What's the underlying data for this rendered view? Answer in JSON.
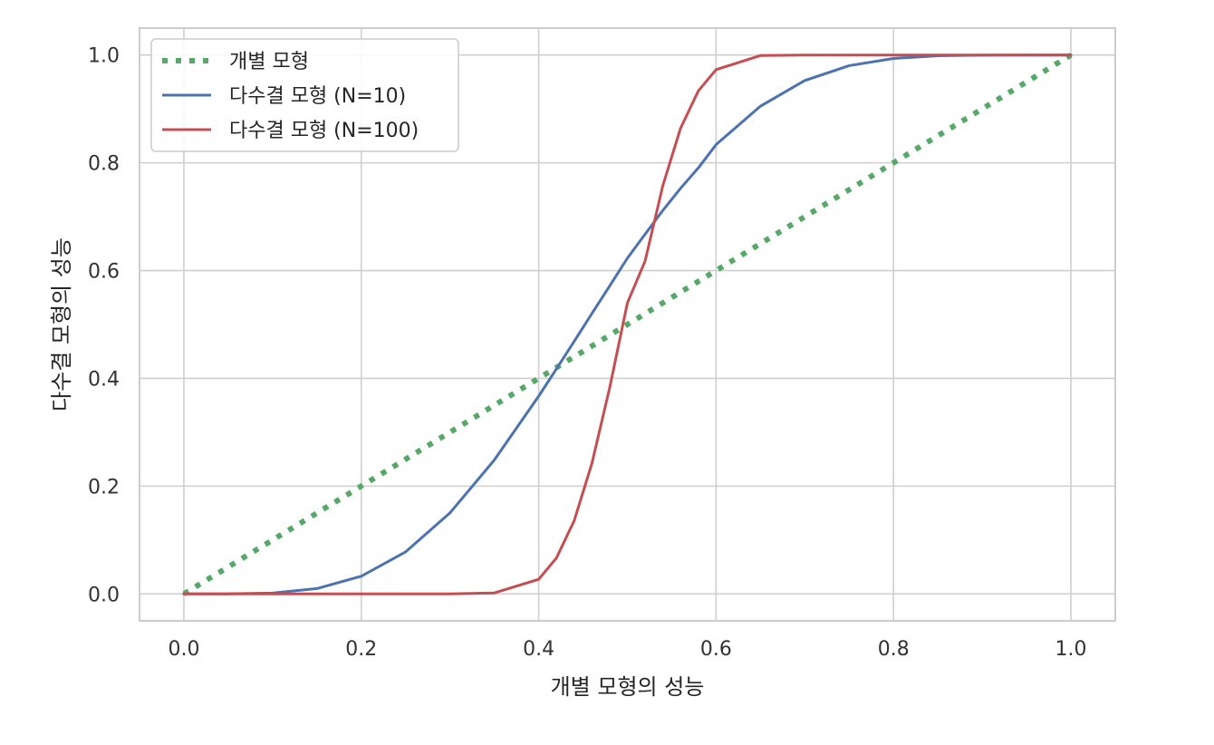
{
  "chart_data": {
    "type": "line",
    "xlabel": "개별 모형의 성능",
    "ylabel": "다수결 모형의 성능",
    "xlim": [
      -0.05,
      1.05
    ],
    "ylim": [
      -0.05,
      1.05
    ],
    "x_ticks": [
      "0.0",
      "0.2",
      "0.4",
      "0.6",
      "0.8",
      "1.0"
    ],
    "y_ticks": [
      "0.0",
      "0.2",
      "0.4",
      "0.6",
      "0.8",
      "1.0"
    ],
    "grid": true,
    "legend_position": "top-left",
    "x": [
      0.0,
      0.05,
      0.1,
      0.15,
      0.2,
      0.25,
      0.3,
      0.35,
      0.4,
      0.42,
      0.44,
      0.46,
      0.48,
      0.5,
      0.52,
      0.54,
      0.56,
      0.58,
      0.6,
      0.65,
      0.7,
      0.75,
      0.8,
      0.85,
      0.9,
      0.95,
      1.0
    ],
    "series": [
      {
        "name": "개별 모형",
        "color": "#55a868",
        "style": "dotted",
        "values": [
          0.0,
          0.05,
          0.1,
          0.15,
          0.2,
          0.25,
          0.3,
          0.35,
          0.4,
          0.42,
          0.44,
          0.46,
          0.48,
          0.5,
          0.52,
          0.54,
          0.56,
          0.58,
          0.6,
          0.65,
          0.7,
          0.75,
          0.8,
          0.85,
          0.9,
          0.95,
          1.0
        ]
      },
      {
        "name": "다수결 모형 (N=10)",
        "color": "#4c72b0",
        "style": "solid",
        "values": [
          0.0,
          0.0001,
          0.0016,
          0.0099,
          0.0328,
          0.078,
          0.1503,
          0.2485,
          0.3669,
          0.4174,
          0.4686,
          0.5202,
          0.5713,
          0.623,
          0.6675,
          0.7117,
          0.7528,
          0.7905,
          0.8338,
          0.9051,
          0.9527,
          0.9803,
          0.9936,
          0.9986,
          0.9998,
          1.0,
          1.0
        ]
      },
      {
        "name": "다수결 모형 (N=100)",
        "color": "#c44e52",
        "style": "solid",
        "values": [
          0.0,
          0.0,
          0.0,
          0.0,
          0.0,
          0.0,
          0.0,
          0.0018,
          0.0271,
          0.0666,
          0.1356,
          0.2421,
          0.3822,
          0.5398,
          0.6178,
          0.7579,
          0.8644,
          0.9334,
          0.9729,
          0.9991,
          1.0,
          1.0,
          1.0,
          1.0,
          1.0,
          1.0,
          1.0
        ]
      }
    ]
  }
}
